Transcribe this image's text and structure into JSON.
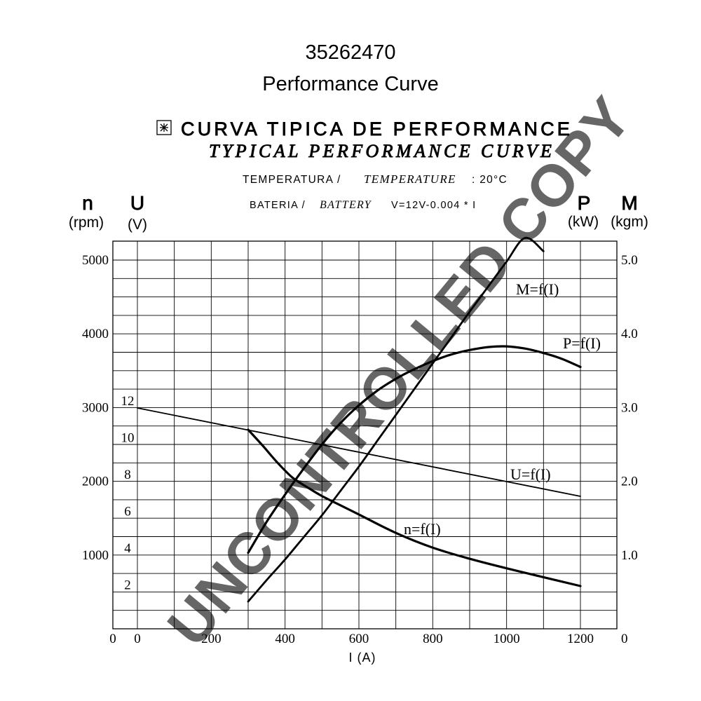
{
  "page": {
    "title": "35262470",
    "subtitle": "Performance Curve",
    "header_line1": "CURVA TIPICA DE PERFORMANCE",
    "header_line2": "TYPICAL PERFORMANCE CURVE",
    "temperature_label_pt": "TEMPERATURA /",
    "temperature_label_en": "TEMPERATURE",
    "temperature_value": ": 20°C",
    "battery_label_pt": "BATERIA /",
    "battery_label_en": "BATTERY",
    "battery_formula": "V=12V-0.004 * I",
    "watermark": "UNCONTROLLED COPY"
  },
  "axes": {
    "n_symbol": "n",
    "n_unit": "(rpm)",
    "u_symbol": "U",
    "u_unit": "(V)",
    "p_symbol": "P",
    "p_unit": "(kW)",
    "m_symbol": "M",
    "m_unit": "(kgm)",
    "x_label": "I (A)"
  },
  "chart_data": {
    "type": "line",
    "title": "35262470 Performance Curve",
    "xlabel": "I (A)",
    "xlim": [
      0,
      1200
    ],
    "x_ticks": [
      "0",
      "200",
      "400",
      "600",
      "800",
      "1000",
      "1200"
    ],
    "x_origin_label": "0",
    "left_n_axis": {
      "label": "n (rpm)",
      "ylim": [
        0,
        5000
      ],
      "ticks": [
        "1000",
        "2000",
        "3000",
        "4000",
        "5000"
      ]
    },
    "left_u_axis": {
      "label": "U (V)",
      "ylim": [
        0,
        12
      ],
      "ticks": [
        "2",
        "4",
        "6",
        "8",
        "10",
        "12"
      ]
    },
    "right_axis": {
      "label": "P (kW) M (kgm)",
      "ylim": [
        0,
        5
      ],
      "ticks": [
        "0",
        "1.0",
        "2.0",
        "3.0",
        "4.0",
        "5.0"
      ]
    },
    "grid": true,
    "series": [
      {
        "name": "U=f(I)",
        "axis": "U",
        "x": [
          0,
          300,
          1000,
          1200
        ],
        "y": [
          12,
          10.8,
          8.0,
          7.2
        ]
      },
      {
        "name": "n=f(I)",
        "axis": "n",
        "x": [
          300,
          340,
          380,
          420,
          460,
          500,
          560,
          600,
          700,
          800,
          900,
          1000,
          1100,
          1200
        ],
        "y": [
          2700,
          2480,
          2250,
          2050,
          1920,
          1800,
          1650,
          1550,
          1300,
          1100,
          950,
          820,
          700,
          580
        ]
      },
      {
        "name": "P=f(I)",
        "axis": "P",
        "x": [
          300,
          350,
          400,
          450,
          500,
          550,
          600,
          650,
          700,
          750,
          800,
          850,
          900,
          950,
          1000,
          1050,
          1100,
          1150,
          1200
        ],
        "y": [
          1.03,
          1.45,
          1.82,
          2.17,
          2.5,
          2.79,
          3.03,
          3.23,
          3.39,
          3.52,
          3.63,
          3.72,
          3.78,
          3.82,
          3.83,
          3.8,
          3.74,
          3.66,
          3.55
        ]
      },
      {
        "name": "M=f(I)",
        "axis": "M",
        "x": [
          300,
          350,
          400,
          450,
          500,
          550,
          600,
          650,
          700,
          750,
          800,
          850,
          900,
          950,
          1000,
          1050,
          1100
        ],
        "y": [
          0.37,
          0.66,
          0.94,
          1.24,
          1.54,
          1.87,
          2.2,
          2.55,
          2.9,
          3.25,
          3.6,
          3.95,
          4.3,
          4.64,
          4.98,
          5.3,
          5.12
        ]
      }
    ]
  }
}
